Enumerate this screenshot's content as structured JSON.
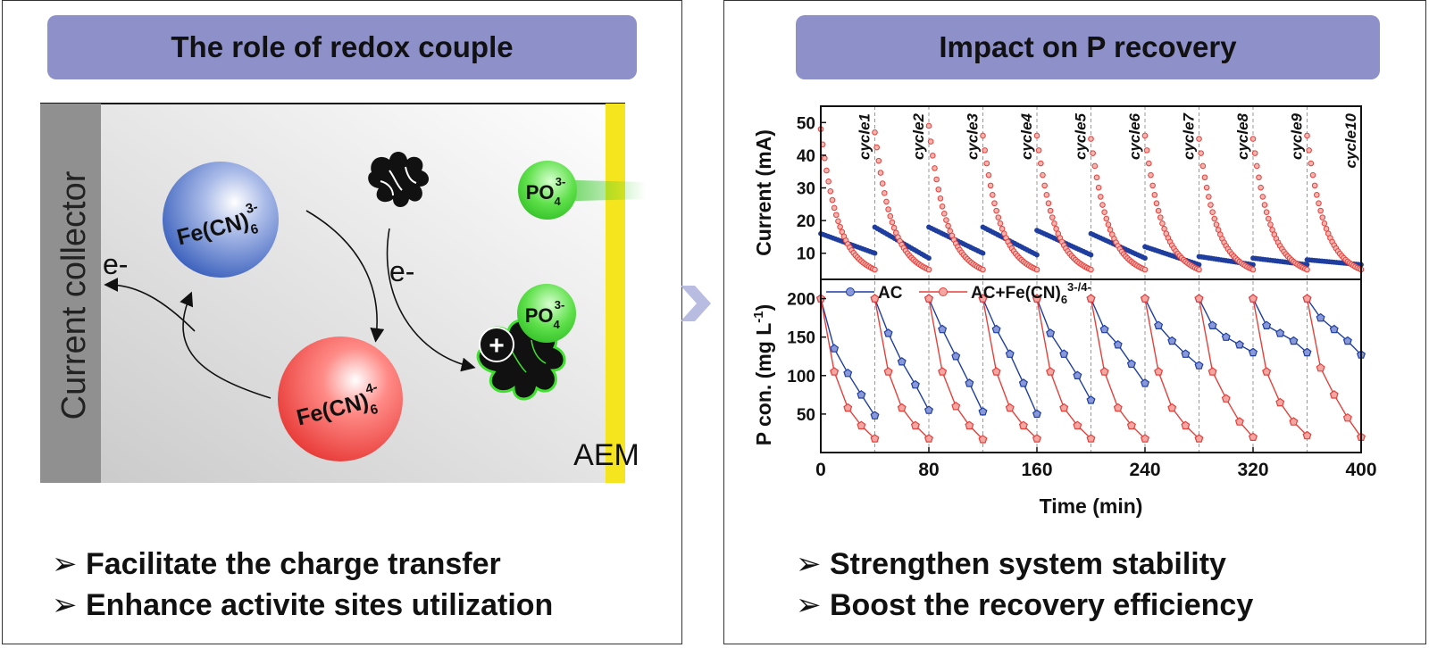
{
  "left": {
    "banner": "The role of redox couple",
    "current_collector": "Current collector",
    "aem": "AEM",
    "species": {
      "ferri_main": "Fe(CN)",
      "ferri_sub": "6",
      "ferri_sup": "3-",
      "ferro_main": "Fe(CN)",
      "ferro_sub": "6",
      "ferro_sup": "4-",
      "po4_main": "PO",
      "po4_sub": "4",
      "po4_sup": "3-"
    },
    "electron_left": "e-",
    "electron_right": "e-",
    "plus": "+",
    "bullets": [
      "Facilitate the charge transfer",
      "Enhance activite sites utilization"
    ],
    "colors": {
      "ferri": "#2f57b8",
      "ferro": "#e5322f",
      "po4": "#3ccc2e",
      "aem": "#f5e51e",
      "collector": "#909090"
    }
  },
  "right": {
    "banner": "Impact on P recovery",
    "bullets": [
      "Strengthen system stability",
      "Boost the recovery efficiency"
    ]
  },
  "chart_data": [
    {
      "type": "scatter",
      "title": "",
      "xlabel": "Time (min)",
      "ylabel": "Current (mA)",
      "ylim": [
        2,
        55
      ],
      "yticks": [
        10,
        20,
        30,
        40,
        50
      ],
      "xlim": [
        0,
        400
      ],
      "cycle_labels": [
        "cycle1",
        "cycle2",
        "cycle3",
        "cycle4",
        "cycle5",
        "cycle6",
        "cycle7",
        "cycle8",
        "cycle9",
        "cycle10"
      ],
      "cycle_boundaries": [
        40,
        80,
        120,
        160,
        200,
        240,
        280,
        320,
        360
      ],
      "series": [
        {
          "name": "AC",
          "color": "#1f3e9f",
          "cycles": [
            [
              0,
              40,
              16,
              10
            ],
            [
              40,
              80,
              18,
              8.5
            ],
            [
              80,
              120,
              18,
              10
            ],
            [
              120,
              160,
              18,
              9.5
            ],
            [
              160,
              200,
              17,
              9.5
            ],
            [
              200,
              240,
              16,
              8.5
            ],
            [
              240,
              280,
              12,
              6.5
            ],
            [
              280,
              320,
              9,
              6.5
            ],
            [
              320,
              360,
              8.5,
              6.5
            ],
            [
              360,
              400,
              8,
              6.5
            ]
          ]
        },
        {
          "name": "AC+Fe(CN)6 3-/4-",
          "color": "#e3413c",
          "cycles": [
            [
              0,
              40,
              48,
              5
            ],
            [
              40,
              80,
              47,
              5
            ],
            [
              80,
              120,
              49,
              5
            ],
            [
              120,
              160,
              46,
              5
            ],
            [
              160,
              200,
              46,
              5
            ],
            [
              200,
              240,
              45,
              5
            ],
            [
              240,
              280,
              46,
              5
            ],
            [
              280,
              320,
              45,
              5
            ],
            [
              320,
              360,
              45,
              5
            ],
            [
              360,
              400,
              46,
              5
            ]
          ]
        }
      ]
    },
    {
      "type": "line",
      "title": "",
      "xlabel": "Time (min)",
      "ylabel": "P con. (mg L-1)",
      "ylim": [
        0,
        225
      ],
      "yticks": [
        50,
        100,
        150,
        200
      ],
      "xlim": [
        0,
        400
      ],
      "xticks": [
        0,
        80,
        160,
        240,
        320,
        400
      ],
      "legend_position": "top-left",
      "series": [
        {
          "name": "AC",
          "color": "#1f3e9f",
          "cycles": [
            [
              [
                0,
                200
              ],
              [
                10,
                135
              ],
              [
                20,
                103
              ],
              [
                30,
                75
              ],
              [
                40,
                48
              ]
            ],
            [
              [
                40,
                200
              ],
              [
                50,
                155
              ],
              [
                60,
                118
              ],
              [
                70,
                88
              ],
              [
                80,
                55
              ]
            ],
            [
              [
                80,
                200
              ],
              [
                90,
                160
              ],
              [
                100,
                125
              ],
              [
                110,
                90
              ],
              [
                120,
                53
              ]
            ],
            [
              [
                120,
                200
              ],
              [
                130,
                160
              ],
              [
                140,
                128
              ],
              [
                150,
                90
              ],
              [
                160,
                50
              ]
            ],
            [
              [
                160,
                200
              ],
              [
                170,
                155
              ],
              [
                180,
                128
              ],
              [
                190,
                100
              ],
              [
                200,
                68
              ]
            ],
            [
              [
                200,
                200
              ],
              [
                210,
                160
              ],
              [
                220,
                140
              ],
              [
                230,
                115
              ],
              [
                240,
                90
              ]
            ],
            [
              [
                240,
                200
              ],
              [
                250,
                165
              ],
              [
                260,
                145
              ],
              [
                270,
                128
              ],
              [
                280,
                113
              ]
            ],
            [
              [
                280,
                200
              ],
              [
                290,
                165
              ],
              [
                300,
                150
              ],
              [
                310,
                140
              ],
              [
                320,
                130
              ]
            ],
            [
              [
                320,
                200
              ],
              [
                330,
                165
              ],
              [
                340,
                155
              ],
              [
                350,
                145
              ],
              [
                360,
                130
              ]
            ],
            [
              [
                360,
                200
              ],
              [
                370,
                175
              ],
              [
                380,
                160
              ],
              [
                390,
                145
              ],
              [
                400,
                127
              ]
            ]
          ]
        },
        {
          "name": "AC+Fe(CN)6 3-/4-",
          "color": "#e3413c",
          "cycles": [
            [
              [
                0,
                200
              ],
              [
                10,
                105
              ],
              [
                20,
                58
              ],
              [
                30,
                35
              ],
              [
                40,
                18
              ]
            ],
            [
              [
                40,
                200
              ],
              [
                50,
                105
              ],
              [
                60,
                58
              ],
              [
                70,
                35
              ],
              [
                80,
                18
              ]
            ],
            [
              [
                80,
                200
              ],
              [
                90,
                105
              ],
              [
                100,
                60
              ],
              [
                110,
                35
              ],
              [
                120,
                17
              ]
            ],
            [
              [
                120,
                200
              ],
              [
                130,
                105
              ],
              [
                140,
                58
              ],
              [
                150,
                35
              ],
              [
                160,
                18
              ]
            ],
            [
              [
                160,
                200
              ],
              [
                170,
                105
              ],
              [
                180,
                58
              ],
              [
                190,
                35
              ],
              [
                200,
                18
              ]
            ],
            [
              [
                200,
                200
              ],
              [
                210,
                105
              ],
              [
                220,
                58
              ],
              [
                230,
                35
              ],
              [
                240,
                18
              ]
            ],
            [
              [
                240,
                200
              ],
              [
                250,
                105
              ],
              [
                260,
                58
              ],
              [
                270,
                35
              ],
              [
                280,
                18
              ]
            ],
            [
              [
                280,
                200
              ],
              [
                290,
                105
              ],
              [
                300,
                70
              ],
              [
                310,
                40
              ],
              [
                320,
                20
              ]
            ],
            [
              [
                320,
                200
              ],
              [
                330,
                105
              ],
              [
                340,
                65
              ],
              [
                350,
                40
              ],
              [
                360,
                22
              ]
            ],
            [
              [
                360,
                200
              ],
              [
                370,
                110
              ],
              [
                380,
                75
              ],
              [
                390,
                45
              ],
              [
                400,
                20
              ]
            ]
          ]
        }
      ]
    }
  ]
}
